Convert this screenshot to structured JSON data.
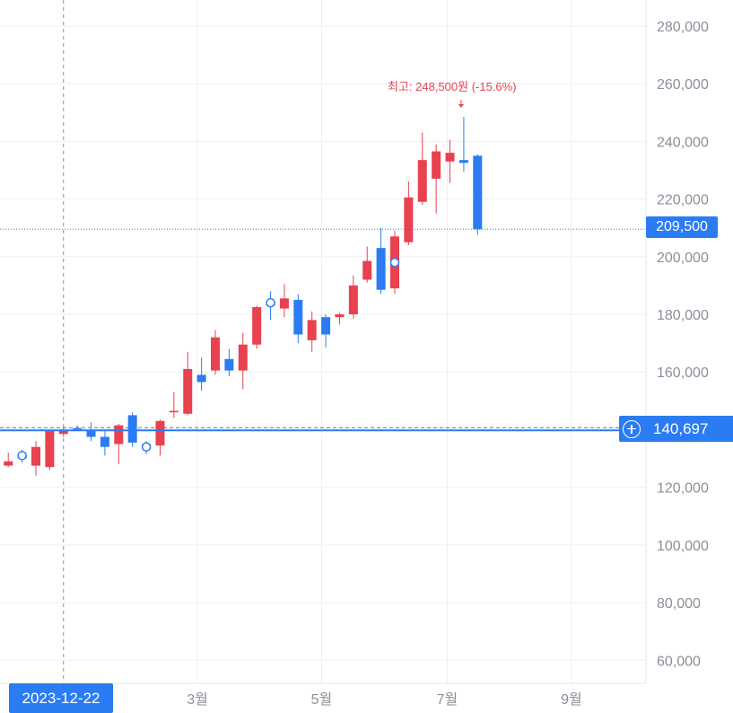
{
  "colors": {
    "up": "#e8414f",
    "down": "#2b7cf2",
    "grid": "#eef0f3",
    "axis_text": "#8a8f98",
    "last_price_line": "#2b7cf2",
    "crosshair": "#8a8f98"
  },
  "last_price_badge": "209,500",
  "crosshair_badge": {
    "icon": "plus-circle-icon",
    "value": "140,697"
  },
  "date_badge": "2023-12-22",
  "high_annotation": {
    "text": "최고: 248,500원 (-15.6%)",
    "icon": "arrow-down-icon"
  },
  "chart_data": {
    "type": "candlestick",
    "title": "",
    "xlabel": "",
    "ylabel": "",
    "ylim": [
      52000,
      289000
    ],
    "y_ticks": [
      "60,000",
      "80,000",
      "100,000",
      "120,000",
      "140,000",
      "160,000",
      "180,000",
      "200,000",
      "220,000",
      "240,000",
      "260,000",
      "280,000"
    ],
    "y_tick_values": [
      60000,
      80000,
      100000,
      120000,
      140000,
      160000,
      180000,
      200000,
      220000,
      240000,
      260000,
      280000
    ],
    "x_ticks": [
      "3월",
      "5월",
      "7월",
      "9월"
    ],
    "x_tick_index": [
      13.7,
      22.7,
      31.8,
      40.8
    ],
    "x_range": [
      -0.6,
      46.2
    ],
    "grid": true,
    "last_price": 209500,
    "crosshair_price": 140697,
    "crosshair_index": 4,
    "high": 248500,
    "candles": [
      {
        "o": 127500,
        "h": 132000,
        "l": 127000,
        "c": 129000
      },
      {
        "o": 131000,
        "h": 133000,
        "l": 128500,
        "c": 130000
      },
      {
        "o": 127500,
        "h": 136000,
        "l": 124000,
        "c": 134000
      },
      {
        "o": 127000,
        "h": 140000,
        "l": 126000,
        "c": 139500
      },
      {
        "o": 138500,
        "h": 141000,
        "l": 137500,
        "c": 140000
      },
      {
        "o": 140500,
        "h": 141500,
        "l": 140000,
        "c": 140200
      },
      {
        "o": 139500,
        "h": 142500,
        "l": 136000,
        "c": 137500
      },
      {
        "o": 137500,
        "h": 140000,
        "l": 131000,
        "c": 134000
      },
      {
        "o": 135000,
        "h": 142000,
        "l": 128000,
        "c": 141500
      },
      {
        "o": 145000,
        "h": 146000,
        "l": 134000,
        "c": 135500
      },
      {
        "o": 135000,
        "h": 136000,
        "l": 131500,
        "c": 134000
      },
      {
        "o": 134500,
        "h": 143500,
        "l": 131000,
        "c": 143000
      },
      {
        "o": 146000,
        "h": 153000,
        "l": 144000,
        "c": 146500
      },
      {
        "o": 145500,
        "h": 167000,
        "l": 145000,
        "c": 161000
      },
      {
        "o": 159000,
        "h": 165000,
        "l": 153500,
        "c": 156500
      },
      {
        "o": 160500,
        "h": 174500,
        "l": 159000,
        "c": 172000
      },
      {
        "o": 164500,
        "h": 168000,
        "l": 158500,
        "c": 160500
      },
      {
        "o": 160500,
        "h": 173500,
        "l": 154000,
        "c": 169500
      },
      {
        "o": 169500,
        "h": 183000,
        "l": 168000,
        "c": 182500
      },
      {
        "o": 184000,
        "h": 188000,
        "l": 178000,
        "c": 183000
      },
      {
        "o": 182000,
        "h": 190500,
        "l": 179000,
        "c": 185500
      },
      {
        "o": 185000,
        "h": 187000,
        "l": 170000,
        "c": 173000
      },
      {
        "o": 171000,
        "h": 181000,
        "l": 167000,
        "c": 178000
      },
      {
        "o": 179000,
        "h": 180000,
        "l": 168500,
        "c": 173000
      },
      {
        "o": 179000,
        "h": 180500,
        "l": 176500,
        "c": 180000
      },
      {
        "o": 180000,
        "h": 193500,
        "l": 178500,
        "c": 190000
      },
      {
        "o": 192000,
        "h": 203500,
        "l": 191000,
        "c": 198500
      },
      {
        "o": 203000,
        "h": 210000,
        "l": 187000,
        "c": 188500
      },
      {
        "o": 189000,
        "h": 209000,
        "l": 187000,
        "c": 207000
      },
      {
        "o": 205000,
        "h": 226000,
        "l": 204000,
        "c": 220500
      },
      {
        "o": 219000,
        "h": 243000,
        "l": 218000,
        "c": 233500
      },
      {
        "o": 227000,
        "h": 239000,
        "l": 215000,
        "c": 236500
      },
      {
        "o": 233000,
        "h": 240500,
        "l": 225500,
        "c": 236000
      },
      {
        "o": 233500,
        "h": 248500,
        "l": 229500,
        "c": 232500
      },
      {
        "o": 235000,
        "h": 235500,
        "l": 207500,
        "c": 209500
      }
    ],
    "markers": [
      {
        "index": 1,
        "price": 131000,
        "kind": "ring",
        "color": "#2b7cf2"
      },
      {
        "index": 10,
        "price": 134000,
        "kind": "ring",
        "color": "#2b7cf2"
      },
      {
        "index": 19,
        "price": 184000,
        "kind": "ring",
        "color": "#2b7cf2"
      },
      {
        "index": 28,
        "price": 198000,
        "kind": "ring",
        "color": "#2b7cf2"
      }
    ]
  }
}
